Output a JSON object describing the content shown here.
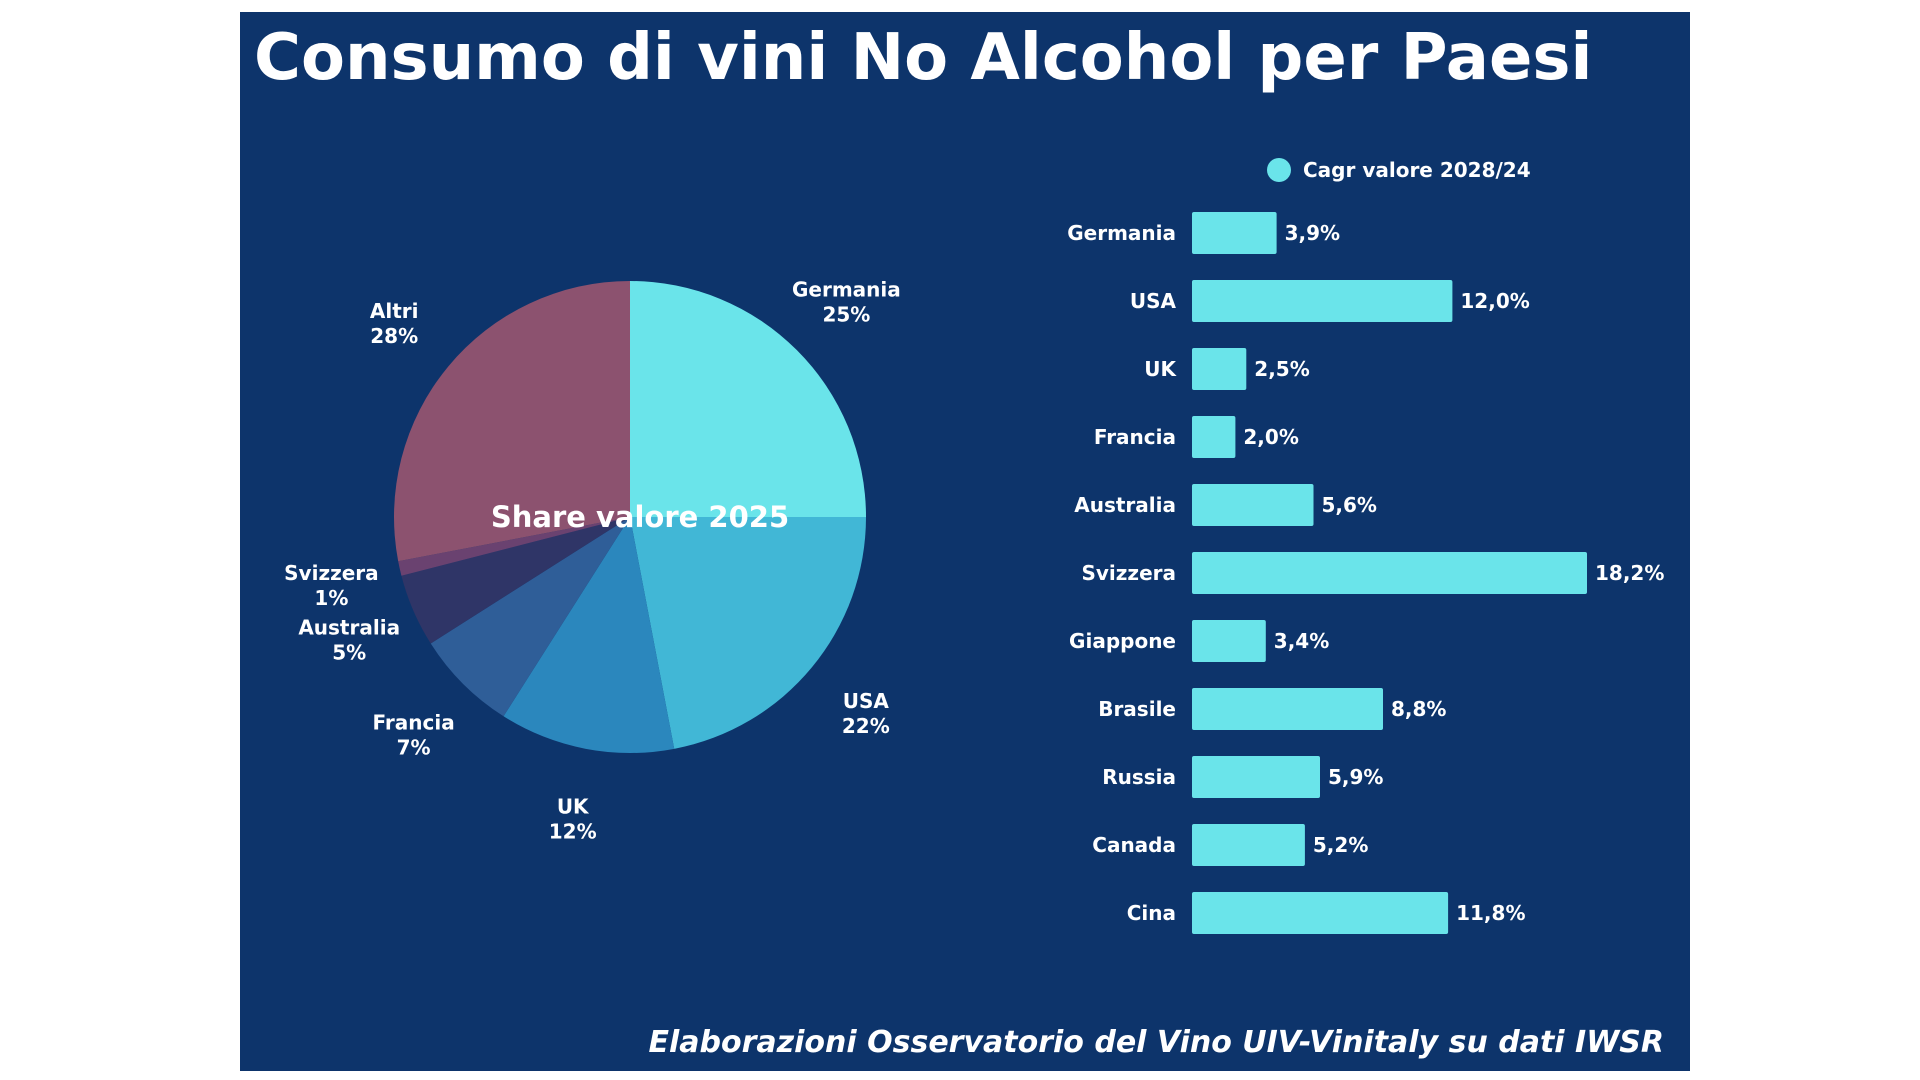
{
  "title": "Consumo di vini No Alcohol per Paesi",
  "source": "Elaborazioni Osservatorio del Vino UIV-Vinitaly su dati IWSR",
  "colors": {
    "background": "#0d346b",
    "bar": "#6ae4ea",
    "text": "#ffffff"
  },
  "chart_data": [
    {
      "type": "pie",
      "title": "Share valore 2025",
      "unit": "%",
      "slices": [
        {
          "label": "Germania",
          "value": 25,
          "display": "25%",
          "color": "#6ae4ea"
        },
        {
          "label": "USA",
          "value": 22,
          "display": "22%",
          "color": "#41b7d6"
        },
        {
          "label": "UK",
          "value": 12,
          "display": "12%",
          "color": "#2b87bd"
        },
        {
          "label": "Francia",
          "value": 7,
          "display": "7%",
          "color": "#2f5e98"
        },
        {
          "label": "Australia",
          "value": 5,
          "display": "5%",
          "color": "#2f3567"
        },
        {
          "label": "Svizzera",
          "value": 1,
          "display": "1%",
          "color": "#6a4270"
        },
        {
          "label": "Altri",
          "value": 28,
          "display": "28%",
          "color": "#8c526f"
        }
      ]
    },
    {
      "type": "bar",
      "orientation": "horizontal",
      "legend": {
        "label": "Cagr valore 2028/24",
        "position": "top"
      },
      "categories": [
        "Germania",
        "USA",
        "UK",
        "Francia",
        "Australia",
        "Svizzera",
        "Giappone",
        "Brasile",
        "Russia",
        "Canada",
        "Cina"
      ],
      "values": [
        3.9,
        12.0,
        2.5,
        2.0,
        5.6,
        18.2,
        3.4,
        8.8,
        5.9,
        5.2,
        11.8
      ],
      "value_labels": [
        "3,9%",
        "12,0%",
        "2,5%",
        "2,0%",
        "5,6%",
        "18,2%",
        "3,4%",
        "8,8%",
        "5,9%",
        "5,2%",
        "11,8%"
      ],
      "xlim": [
        0,
        18.2
      ],
      "grid": false
    }
  ]
}
